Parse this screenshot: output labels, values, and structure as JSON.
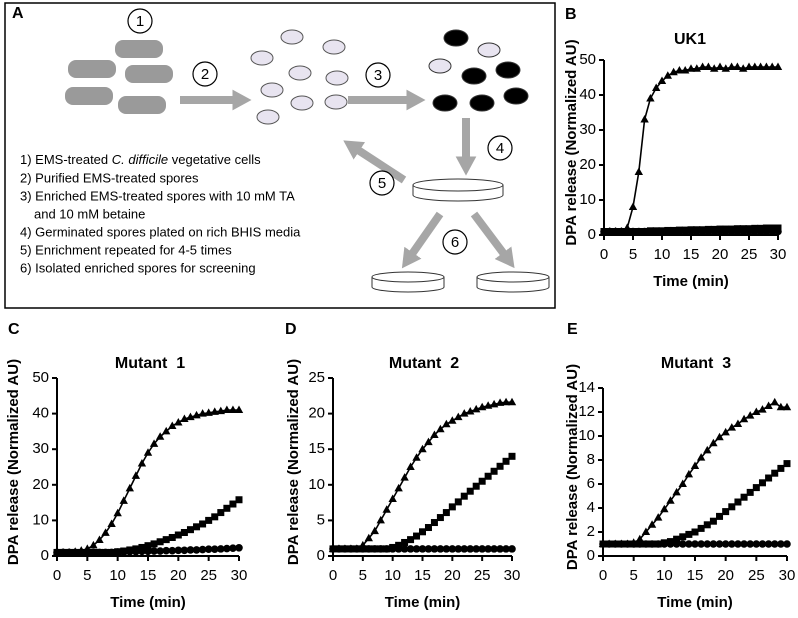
{
  "diagram": {
    "label": "A",
    "steps": [
      "1",
      "2",
      "3",
      "4",
      "5",
      "6"
    ],
    "legend": [
      [
        "1) EMS-treated ",
        "C. difficile",
        " vegetative cells"
      ],
      "2) Purified EMS-treated spores",
      "3) Enriched EMS-treated spores with 10 mM TA",
      "and 10 mM betaine",
      "4) Germinated spores plated on rich BHIS media",
      "5) Enrichment repeated for 4-5 times",
      "6) Isolated enriched spores for screening"
    ]
  },
  "chart_data": [
    {
      "type": "line",
      "panel": "B",
      "title": "UK1",
      "ylabel": "DPA release (Normalized AU)",
      "xlabel": "Time (min)",
      "xlim": [
        0,
        30
      ],
      "xticks": [
        0,
        5,
        10,
        15,
        20,
        25,
        30
      ],
      "ylim": [
        0,
        50
      ],
      "yticks": [
        0,
        10,
        20,
        30,
        40,
        50
      ],
      "x": [
        0,
        1,
        2,
        3,
        4,
        5,
        6,
        7,
        8,
        9,
        10,
        11,
        12,
        13,
        14,
        15,
        16,
        17,
        18,
        19,
        20,
        21,
        22,
        23,
        24,
        25,
        26,
        27,
        28,
        29,
        30
      ],
      "series": [
        {
          "marker": "triangle",
          "color": "#000000",
          "values": [
            1,
            1,
            1,
            1,
            2,
            8,
            18,
            33,
            39,
            42,
            44,
            45.5,
            46.5,
            47,
            47,
            47.5,
            47.5,
            48,
            48,
            47.5,
            48,
            47.5,
            48,
            48,
            47.5,
            48,
            48,
            48,
            48,
            48,
            48
          ]
        },
        {
          "marker": "square",
          "color": "#000000",
          "values": [
            1,
            1,
            1,
            1,
            1,
            1,
            1,
            1,
            1.2,
            1.2,
            1.2,
            1.3,
            1.3,
            1.4,
            1.4,
            1.5,
            1.5,
            1.5,
            1.6,
            1.6,
            1.7,
            1.7,
            1.7,
            1.8,
            1.8,
            1.8,
            1.9,
            1.9,
            2,
            2,
            2
          ]
        },
        {
          "marker": "circle",
          "color": "#000000",
          "values": [
            1,
            1,
            1,
            1,
            1,
            1,
            1,
            1,
            1,
            1,
            1,
            1,
            1,
            1,
            1,
            1,
            1,
            1,
            1,
            1,
            1,
            1,
            1,
            1,
            1,
            1,
            1,
            1,
            1,
            1,
            1
          ]
        }
      ]
    },
    {
      "type": "line",
      "panel": "C",
      "title": "Mutant  1",
      "ylabel": "DPA release (Normalized AU)",
      "xlabel": "Time (min)",
      "xlim": [
        0,
        30
      ],
      "xticks": [
        0,
        5,
        10,
        15,
        20,
        25,
        30
      ],
      "ylim": [
        0,
        50
      ],
      "yticks": [
        0,
        10,
        20,
        30,
        40,
        50
      ],
      "x": [
        0,
        1,
        2,
        3,
        4,
        5,
        6,
        7,
        8,
        9,
        10,
        11,
        12,
        13,
        14,
        15,
        16,
        17,
        18,
        19,
        20,
        21,
        22,
        23,
        24,
        25,
        26,
        27,
        28,
        29,
        30
      ],
      "series": [
        {
          "marker": "triangle",
          "color": "#000000",
          "values": [
            1,
            1,
            1,
            1.2,
            1.5,
            2,
            3,
            4.5,
            6.5,
            9,
            12,
            15.5,
            19,
            22.5,
            26,
            29,
            31.5,
            33.5,
            35,
            36.5,
            37.5,
            38.5,
            39,
            39.5,
            40,
            40.2,
            40.5,
            40.7,
            41,
            41,
            41
          ]
        },
        {
          "marker": "square",
          "color": "#000000",
          "values": [
            1,
            1,
            1,
            1,
            1,
            1,
            1,
            1,
            1,
            1,
            1.2,
            1.4,
            1.7,
            2,
            2.4,
            2.9,
            3.4,
            4,
            4.6,
            5.2,
            5.9,
            6.6,
            7.4,
            8.2,
            9,
            10,
            11,
            12.2,
            13.4,
            14.6,
            15.8
          ]
        },
        {
          "marker": "circle",
          "color": "#000000",
          "values": [
            1,
            1,
            1,
            1,
            1,
            1,
            1,
            1,
            1,
            1,
            1.1,
            1.1,
            1.2,
            1.2,
            1.3,
            1.3,
            1.4,
            1.4,
            1.5,
            1.5,
            1.6,
            1.6,
            1.7,
            1.7,
            1.8,
            1.9,
            1.9,
            2,
            2.1,
            2.2,
            2.3
          ]
        }
      ]
    },
    {
      "type": "line",
      "panel": "D",
      "title": "Mutant  2",
      "ylabel": "DPA release (Normalized AU)",
      "xlabel": "Time (min)",
      "xlim": [
        0,
        30
      ],
      "xticks": [
        0,
        5,
        10,
        15,
        20,
        25,
        30
      ],
      "ylim": [
        0,
        25
      ],
      "yticks": [
        0,
        5,
        10,
        15,
        20,
        25
      ],
      "x": [
        0,
        1,
        2,
        3,
        4,
        5,
        6,
        7,
        8,
        9,
        10,
        11,
        12,
        13,
        14,
        15,
        16,
        17,
        18,
        19,
        20,
        21,
        22,
        23,
        24,
        25,
        26,
        27,
        28,
        29,
        30
      ],
      "series": [
        {
          "marker": "triangle",
          "color": "#000000",
          "values": [
            1,
            1,
            1,
            1,
            1,
            1.5,
            2.5,
            3.5,
            5,
            6.5,
            8,
            9.5,
            11,
            12.5,
            13.8,
            15,
            16,
            17,
            17.8,
            18.5,
            19,
            19.5,
            20,
            20.3,
            20.6,
            20.9,
            21.1,
            21.3,
            21.5,
            21.6,
            21.6
          ]
        },
        {
          "marker": "square",
          "color": "#000000",
          "values": [
            1,
            1,
            1,
            1,
            1,
            1,
            1,
            1,
            1,
            1,
            1.2,
            1.5,
            1.9,
            2.3,
            2.8,
            3.4,
            4,
            4.7,
            5.4,
            6.1,
            6.9,
            7.6,
            8.4,
            9.1,
            9.8,
            10.5,
            11.2,
            11.9,
            12.6,
            13.3,
            14
          ]
        },
        {
          "marker": "circle",
          "color": "#000000",
          "values": [
            1,
            1,
            1,
            1,
            1,
            1,
            1,
            1,
            1,
            1,
            1,
            1,
            1,
            1,
            1,
            1,
            1,
            1,
            1,
            1,
            1,
            1,
            1,
            1,
            1,
            1,
            1,
            1,
            1,
            1,
            1
          ]
        }
      ]
    },
    {
      "type": "line",
      "panel": "E",
      "title": "Mutant  3",
      "ylabel": "DPA release (Normalized AU)",
      "xlabel": "Time (min)",
      "xlim": [
        0,
        30
      ],
      "xticks": [
        0,
        5,
        10,
        15,
        20,
        25,
        30
      ],
      "ylim": [
        0,
        14
      ],
      "yticks": [
        0,
        2,
        4,
        6,
        8,
        10,
        12,
        14
      ],
      "x": [
        0,
        1,
        2,
        3,
        4,
        5,
        6,
        7,
        8,
        9,
        10,
        11,
        12,
        13,
        14,
        15,
        16,
        17,
        18,
        19,
        20,
        21,
        22,
        23,
        24,
        25,
        26,
        27,
        28,
        29,
        30
      ],
      "series": [
        {
          "marker": "triangle",
          "color": "#000000",
          "values": [
            1,
            1,
            1,
            1,
            1,
            1.1,
            1.4,
            2,
            2.6,
            3.2,
            3.9,
            4.6,
            5.3,
            6,
            6.8,
            7.5,
            8.2,
            8.8,
            9.4,
            9.9,
            10.3,
            10.7,
            11,
            11.4,
            11.7,
            12,
            12.2,
            12.5,
            12.8,
            12.4,
            12.4
          ]
        },
        {
          "marker": "square",
          "color": "#000000",
          "values": [
            1,
            1,
            1,
            1,
            1,
            1,
            1,
            1,
            1,
            1,
            1.1,
            1.2,
            1.4,
            1.6,
            1.8,
            2,
            2.3,
            2.6,
            2.9,
            3.3,
            3.7,
            4.1,
            4.5,
            4.9,
            5.3,
            5.7,
            6.1,
            6.5,
            6.9,
            7.3,
            7.7
          ]
        },
        {
          "marker": "circle",
          "color": "#000000",
          "values": [
            1,
            1,
            1,
            1,
            1,
            1,
            1,
            1,
            1,
            1,
            1,
            1,
            1,
            1,
            1,
            1,
            1,
            1,
            1,
            1,
            1,
            1,
            1,
            1,
            1,
            1,
            1,
            1,
            1,
            1,
            1
          ]
        }
      ]
    }
  ]
}
